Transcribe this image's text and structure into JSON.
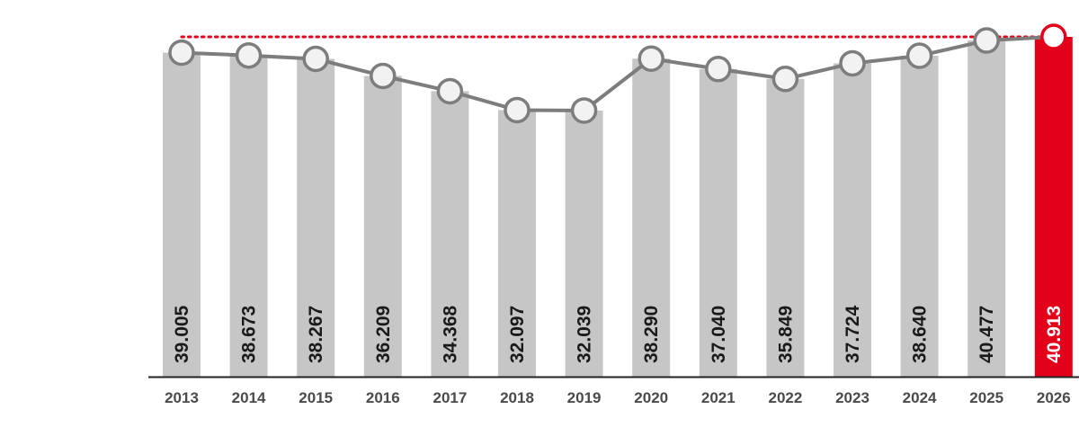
{
  "chart_data": {
    "type": "bar",
    "categories": [
      "2013",
      "2014",
      "2015",
      "2016",
      "2017",
      "2018",
      "2019",
      "2020",
      "2021",
      "2022",
      "2023",
      "2024",
      "2025",
      "2026"
    ],
    "values": [
      39005,
      38673,
      38267,
      36209,
      34368,
      32097,
      32039,
      38290,
      37040,
      35849,
      37724,
      38640,
      40477,
      40913
    ],
    "value_labels": [
      "39.005",
      "38.673",
      "38.267",
      "36.209",
      "34.368",
      "32.097",
      "32.039",
      "38.290",
      "37.040",
      "35.849",
      "37.724",
      "38.640",
      "40.477",
      "40.913"
    ],
    "overlay_line": {
      "type": "line",
      "marker": "circle",
      "values": [
        39005,
        38673,
        38267,
        36209,
        34368,
        32097,
        32039,
        38290,
        37040,
        35849,
        37724,
        38640,
        40477,
        40913
      ]
    },
    "reference_line": {
      "style": "dotted",
      "value": 40913
    },
    "highlight_category": "2026",
    "ylim": [
      0,
      41000
    ],
    "grid": false,
    "legend": "none",
    "title": "",
    "xlabel": "",
    "ylabel": "",
    "colors": {
      "bar": "#c6c6c6",
      "bar_highlight": "#e2001a",
      "line": "#7d7d7d",
      "marker_fill": "#f2f2f2",
      "marker_stroke": "#7d7d7d",
      "reference_line": "#e2001a",
      "axis": "#222222",
      "label_text": "#1a1a1a",
      "label_text_highlight": "#ffffff",
      "tick_text": "#4a4a4a"
    }
  }
}
